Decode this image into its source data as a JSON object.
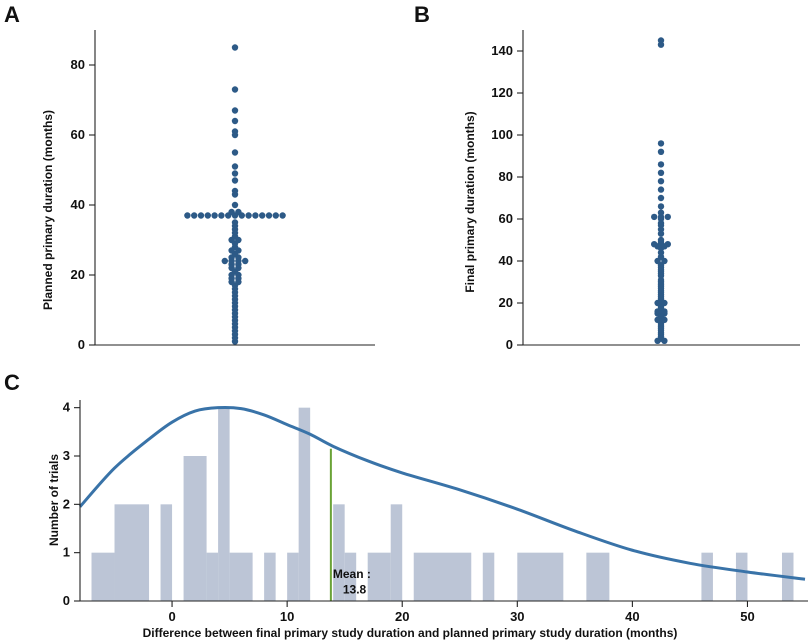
{
  "chart_data": [
    {
      "id": "A",
      "panel_label": "A",
      "type": "scatter",
      "subtype": "dot-strip",
      "ylabel": "Planned primary duration (months)",
      "ylim": [
        0,
        90
      ],
      "yticks": [
        0,
        20,
        40,
        60,
        80
      ],
      "ytick_labels": [
        "0",
        "20",
        "40",
        "60",
        "80"
      ],
      "values": [
        85,
        73,
        67,
        64,
        61,
        60,
        55,
        51,
        49,
        47,
        44,
        43,
        40,
        38,
        38,
        37,
        37,
        37,
        37,
        37,
        37,
        37,
        37,
        37,
        37,
        37,
        37,
        37,
        37,
        37,
        35,
        34,
        33,
        32,
        31,
        30,
        30,
        29,
        28,
        27,
        27,
        26,
        25,
        25,
        24,
        24,
        24,
        24,
        23,
        23,
        22,
        22,
        21,
        20,
        20,
        19,
        19,
        18,
        18,
        17,
        16,
        15,
        14,
        13,
        12,
        11,
        10,
        9,
        8,
        7,
        6,
        5,
        4,
        3,
        2,
        1
      ]
    },
    {
      "id": "B",
      "panel_label": "B",
      "type": "scatter",
      "subtype": "dot-strip",
      "ylabel": "Final primary duration (months)",
      "ylim": [
        0,
        150
      ],
      "yticks": [
        0,
        20,
        40,
        60,
        80,
        100,
        120,
        140
      ],
      "ytick_labels": [
        "0",
        "20",
        "40",
        "60",
        "80",
        "100",
        "120",
        "140"
      ],
      "values": [
        145,
        143,
        96,
        92,
        86,
        82,
        78,
        74,
        70,
        66,
        63,
        61,
        61,
        61,
        60,
        58,
        57,
        55,
        53,
        50,
        49,
        48,
        48,
        48,
        47,
        47,
        46,
        44,
        42,
        40,
        40,
        38,
        37,
        36,
        35,
        34,
        33,
        31,
        30,
        29,
        28,
        27,
        26,
        25,
        24,
        23,
        22,
        21,
        20,
        20,
        19,
        18,
        17,
        16,
        16,
        15,
        15,
        14,
        13,
        12,
        12,
        11,
        10,
        9,
        8,
        7,
        6,
        5,
        4,
        3,
        2,
        2
      ]
    },
    {
      "id": "C",
      "panel_label": "C",
      "type": "bar",
      "subtype": "histogram-with-density",
      "xlabel": "Difference between final primary study duration and planned primary study duration (months)",
      "ylabel": "Number of trials",
      "xlim": [
        -8,
        55
      ],
      "ylim": [
        0,
        4.2
      ],
      "xticks": [
        0,
        10,
        20,
        30,
        40,
        50
      ],
      "xtick_labels": [
        "0",
        "10",
        "20",
        "30",
        "40",
        "50"
      ],
      "yticks": [
        0,
        1,
        2,
        3,
        4
      ],
      "ytick_labels": [
        "0",
        "1",
        "2",
        "3",
        "4"
      ],
      "bins": [
        {
          "start": -7,
          "end": -5,
          "count": 1
        },
        {
          "start": -5,
          "end": -2,
          "count": 2
        },
        {
          "start": -1,
          "end": 0,
          "count": 2
        },
        {
          "start": 1,
          "end": 3,
          "count": 3
        },
        {
          "start": 3,
          "end": 4,
          "count": 1
        },
        {
          "start": 4,
          "end": 5,
          "count": 4
        },
        {
          "start": 5,
          "end": 7,
          "count": 1
        },
        {
          "start": 8,
          "end": 9,
          "count": 1
        },
        {
          "start": 10,
          "end": 11,
          "count": 1
        },
        {
          "start": 11,
          "end": 12,
          "count": 4
        },
        {
          "start": 14,
          "end": 15,
          "count": 2
        },
        {
          "start": 15,
          "end": 16,
          "count": 1
        },
        {
          "start": 17,
          "end": 19,
          "count": 1
        },
        {
          "start": 19,
          "end": 20,
          "count": 2
        },
        {
          "start": 21,
          "end": 26,
          "count": 1
        },
        {
          "start": 27,
          "end": 28,
          "count": 1
        },
        {
          "start": 30,
          "end": 34,
          "count": 1
        },
        {
          "start": 36,
          "end": 38,
          "count": 1
        },
        {
          "start": 46,
          "end": 47,
          "count": 1
        },
        {
          "start": 49,
          "end": 50,
          "count": 1
        },
        {
          "start": 53,
          "end": 54,
          "count": 1
        }
      ],
      "density_curve": {
        "x": [
          -8,
          -5,
          -2,
          0,
          2,
          4,
          6,
          8,
          10,
          12,
          14,
          17,
          20,
          25,
          30,
          35,
          40,
          45,
          50,
          55
        ],
        "y": [
          1.95,
          2.75,
          3.35,
          3.7,
          3.93,
          4.0,
          3.98,
          3.85,
          3.65,
          3.45,
          3.2,
          2.9,
          2.65,
          2.3,
          1.9,
          1.45,
          1.05,
          0.78,
          0.6,
          0.45
        ]
      },
      "mean": {
        "value": 13.8,
        "label": "Mean :",
        "value_label": "13.8"
      }
    }
  ]
}
